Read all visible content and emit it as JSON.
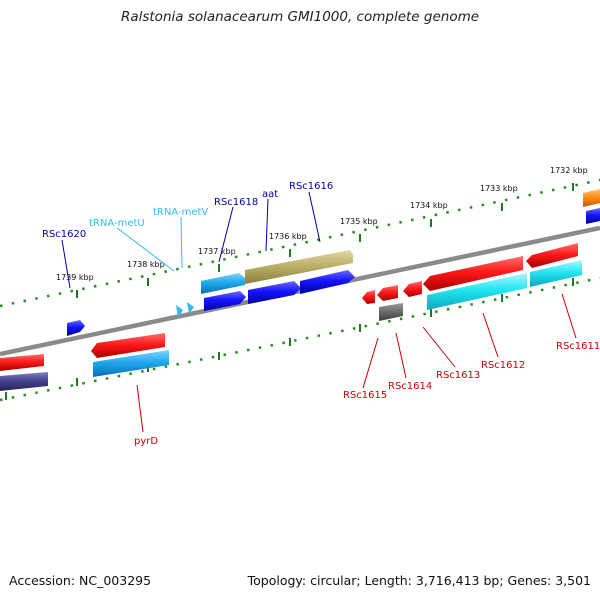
{
  "header": {
    "title": "Ralstonia solanacearum GMI1000, complete genome"
  },
  "footer": {
    "accession": "Accession: NC_003295",
    "stats": "Topology: circular; Length: 3,716,413 bp; Genes: 3,501"
  },
  "colors": {
    "backbone": "#808080",
    "tick": "#228b22",
    "forward_label": "#0000aa",
    "rna_label": "#33bbee",
    "reverse_label": "#cc0000"
  },
  "ticks": [
    "1739 kbp",
    "1738 kbp",
    "1737 kbp",
    "1736 kbp",
    "1735 kbp",
    "1734 kbp",
    "1733 kbp",
    "1732 kbp"
  ],
  "gene_labels": {
    "forward": [
      "RSc1620",
      "RSc1618",
      "aat",
      "RSc1616"
    ],
    "rna": [
      "tRNA-metU",
      "tRNA-metV"
    ],
    "reverse": [
      "pyrD",
      "RSc1615",
      "RSc1614",
      "RSc1613",
      "RSc1612",
      "RSc1611"
    ]
  }
}
